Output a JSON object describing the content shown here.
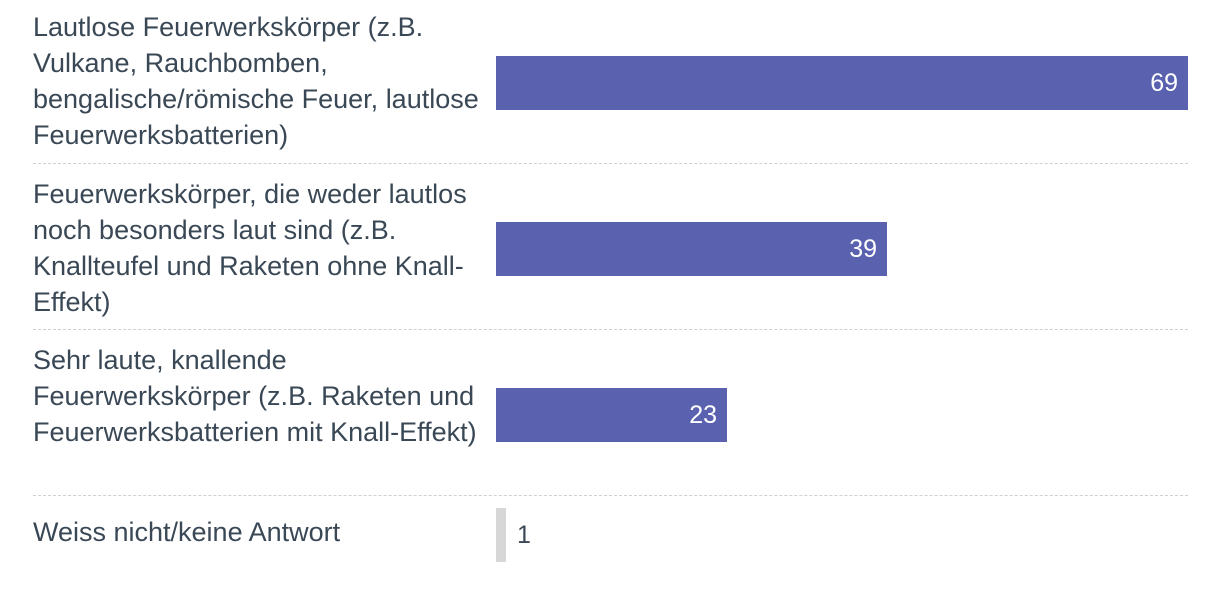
{
  "chart_data": {
    "type": "bar",
    "orientation": "horizontal",
    "categories": [
      "Lautlose Feuerwerkskörper (z.B. Vulkane, Rauchbomben, bengalische/römische Feuer, lautlose Feuerwerksbatterien)",
      "Feuerwerkskörper, die weder lautlos noch besonders laut sind (z.B. Knallteufel und Raketen ohne Knall-Effekt)",
      "Sehr laute, knallende Feuerwerkskörper (z.B. Raketen und Feuerwerksbatterien mit Knall-Effekt)",
      "Weiss nicht/keine Antwort"
    ],
    "values": [
      69,
      39,
      23,
      1
    ],
    "value_labels": [
      "69",
      "39",
      "23",
      "1"
    ],
    "bar_colors": [
      "#5a62b0",
      "#5a62b0",
      "#5a62b0",
      "#d7d7d7"
    ],
    "xlim": [
      0,
      69
    ],
    "grid": false,
    "title": "",
    "xlabel": "",
    "ylabel": ""
  }
}
